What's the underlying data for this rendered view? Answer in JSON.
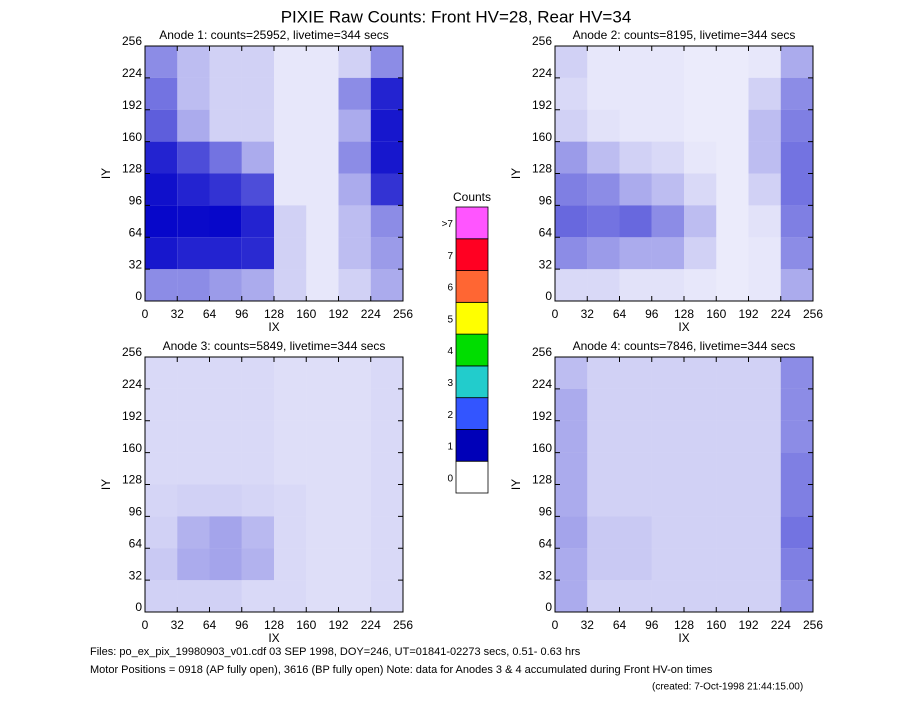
{
  "title": "PIXIE Raw Counts:  Front HV=28, Rear HV=34",
  "footer": [
    "Files: po_ex_pix_19980903_v01.cdf     03 SEP 1998, DOY=246, UT=01841-02273 secs,  0.51- 0.63 hrs",
    "Motor Positions = 0918 (AP fully open), 3616 (BP fully open)    Note: data for Anodes 3 & 4 accumulated during Front HV-on times"
  ],
  "created": "(created:  7-Oct-1998 21:44:15.00)",
  "chart_data": [
    {
      "type": "heatmap",
      "title": "Anode 1: counts=25952, livetime=344 secs",
      "xlabel": "IX",
      "ylabel": "IY",
      "color": "#0000c8",
      "xlim": [
        0,
        256
      ],
      "ylim": [
        0,
        256
      ],
      "xticks": [
        0,
        32,
        64,
        96,
        128,
        160,
        192,
        224,
        256
      ],
      "yticks": [
        0,
        32,
        64,
        96,
        128,
        160,
        192,
        224,
        256
      ],
      "xbins": [
        0,
        32,
        64,
        96,
        128,
        160,
        192,
        224,
        256
      ],
      "ybins": [
        0,
        32,
        64,
        96,
        128,
        160,
        192,
        224,
        256
      ],
      "z": [
        [
          0.3,
          0.3,
          0.25,
          0.2,
          0.1,
          0.05,
          0.1,
          0.2
        ],
        [
          1.2,
          1.0,
          1.0,
          0.9,
          0.1,
          0.05,
          0.15,
          0.25
        ],
        [
          1.8,
          1.6,
          1.8,
          1.0,
          0.1,
          0.05,
          0.15,
          0.3
        ],
        [
          1.4,
          1.0,
          0.8,
          0.6,
          0.05,
          0.05,
          0.2,
          0.8
        ],
        [
          1.0,
          0.6,
          0.4,
          0.2,
          0.05,
          0.05,
          0.3,
          1.2
        ],
        [
          0.5,
          0.2,
          0.1,
          0.1,
          0.05,
          0.05,
          0.2,
          1.2
        ],
        [
          0.4,
          0.15,
          0.1,
          0.1,
          0.05,
          0.05,
          0.3,
          1.0
        ],
        [
          0.3,
          0.15,
          0.1,
          0.1,
          0.05,
          0.05,
          0.1,
          0.3
        ]
      ]
    },
    {
      "type": "heatmap",
      "title": "Anode 2: counts=8195, livetime=344 secs",
      "xlabel": "IX",
      "ylabel": "IY",
      "color": "#0000c8",
      "xlim": [
        0,
        256
      ],
      "ylim": [
        0,
        256
      ],
      "xticks": [
        0,
        32,
        64,
        96,
        128,
        160,
        192,
        224,
        256
      ],
      "yticks": [
        0,
        32,
        64,
        96,
        128,
        160,
        192,
        224,
        256
      ],
      "xbins": [
        0,
        32,
        64,
        96,
        128,
        160,
        192,
        224,
        256
      ],
      "ybins": [
        0,
        32,
        64,
        96,
        128,
        160,
        192,
        224,
        256
      ],
      "z": [
        [
          0.08,
          0.08,
          0.06,
          0.06,
          0.05,
          0.04,
          0.05,
          0.2
        ],
        [
          0.3,
          0.25,
          0.2,
          0.2,
          0.1,
          0.04,
          0.05,
          0.3
        ],
        [
          0.45,
          0.4,
          0.45,
          0.3,
          0.15,
          0.04,
          0.06,
          0.35
        ],
        [
          0.35,
          0.3,
          0.2,
          0.15,
          0.08,
          0.04,
          0.1,
          0.4
        ],
        [
          0.25,
          0.15,
          0.1,
          0.08,
          0.05,
          0.04,
          0.15,
          0.4
        ],
        [
          0.1,
          0.06,
          0.05,
          0.05,
          0.04,
          0.04,
          0.15,
          0.35
        ],
        [
          0.08,
          0.05,
          0.05,
          0.05,
          0.04,
          0.04,
          0.1,
          0.3
        ],
        [
          0.1,
          0.05,
          0.05,
          0.05,
          0.04,
          0.04,
          0.05,
          0.2
        ]
      ]
    },
    {
      "type": "heatmap",
      "title": "Anode 3: counts=5849, livetime=344 secs",
      "xlabel": "IX",
      "ylabel": "IY",
      "color": "#0000c8",
      "xlim": [
        0,
        256
      ],
      "ylim": [
        0,
        256
      ],
      "xticks": [
        0,
        32,
        64,
        96,
        128,
        160,
        192,
        224,
        256
      ],
      "yticks": [
        0,
        32,
        64,
        96,
        128,
        160,
        192,
        224,
        256
      ],
      "xbins": [
        0,
        32,
        64,
        96,
        128,
        160,
        192,
        224,
        256
      ],
      "ybins": [
        0,
        32,
        64,
        96,
        128,
        160,
        192,
        224,
        256
      ],
      "z": [
        [
          0.1,
          0.1,
          0.1,
          0.08,
          0.08,
          0.07,
          0.07,
          0.08
        ],
        [
          0.12,
          0.2,
          0.22,
          0.18,
          0.08,
          0.07,
          0.07,
          0.08
        ],
        [
          0.1,
          0.18,
          0.22,
          0.16,
          0.08,
          0.07,
          0.07,
          0.08
        ],
        [
          0.09,
          0.1,
          0.1,
          0.09,
          0.08,
          0.07,
          0.07,
          0.08
        ],
        [
          0.08,
          0.08,
          0.08,
          0.08,
          0.07,
          0.07,
          0.07,
          0.08
        ],
        [
          0.08,
          0.08,
          0.08,
          0.08,
          0.07,
          0.07,
          0.07,
          0.08
        ],
        [
          0.08,
          0.08,
          0.08,
          0.08,
          0.07,
          0.07,
          0.07,
          0.08
        ],
        [
          0.08,
          0.08,
          0.08,
          0.08,
          0.07,
          0.07,
          0.07,
          0.08
        ]
      ]
    },
    {
      "type": "heatmap",
      "title": "Anode 4: counts=7846, livetime=344 secs",
      "xlabel": "IX",
      "ylabel": "IY",
      "color": "#0000c8",
      "xlim": [
        0,
        256
      ],
      "ylim": [
        0,
        256
      ],
      "xticks": [
        0,
        32,
        64,
        96,
        128,
        160,
        192,
        224,
        256
      ],
      "yticks": [
        0,
        32,
        64,
        96,
        128,
        160,
        192,
        224,
        256
      ],
      "xbins": [
        0,
        32,
        64,
        96,
        128,
        160,
        192,
        224,
        256
      ],
      "ybins": [
        0,
        32,
        64,
        96,
        128,
        160,
        192,
        224,
        256
      ],
      "z": [
        [
          0.2,
          0.1,
          0.1,
          0.1,
          0.1,
          0.1,
          0.1,
          0.3
        ],
        [
          0.2,
          0.12,
          0.12,
          0.1,
          0.1,
          0.1,
          0.1,
          0.35
        ],
        [
          0.22,
          0.12,
          0.12,
          0.1,
          0.1,
          0.1,
          0.1,
          0.4
        ],
        [
          0.2,
          0.1,
          0.1,
          0.1,
          0.1,
          0.1,
          0.1,
          0.35
        ],
        [
          0.2,
          0.1,
          0.1,
          0.1,
          0.1,
          0.1,
          0.1,
          0.35
        ],
        [
          0.2,
          0.1,
          0.1,
          0.1,
          0.1,
          0.1,
          0.1,
          0.3
        ],
        [
          0.2,
          0.1,
          0.1,
          0.1,
          0.1,
          0.1,
          0.1,
          0.3
        ],
        [
          0.15,
          0.1,
          0.1,
          0.1,
          0.1,
          0.1,
          0.1,
          0.3
        ]
      ]
    },
    {
      "type": "colorbar",
      "title": "Counts",
      "ticks": [
        0,
        1,
        2,
        3,
        4,
        5,
        6,
        7,
        {
          "value": 8,
          "label": ">7"
        }
      ],
      "colors": [
        "#ffffff",
        "#0000b8",
        "#3355ff",
        "#22cccc",
        "#00dd00",
        "#ffff00",
        "#ff6633",
        "#ff0022",
        "#ff55ff"
      ]
    }
  ]
}
